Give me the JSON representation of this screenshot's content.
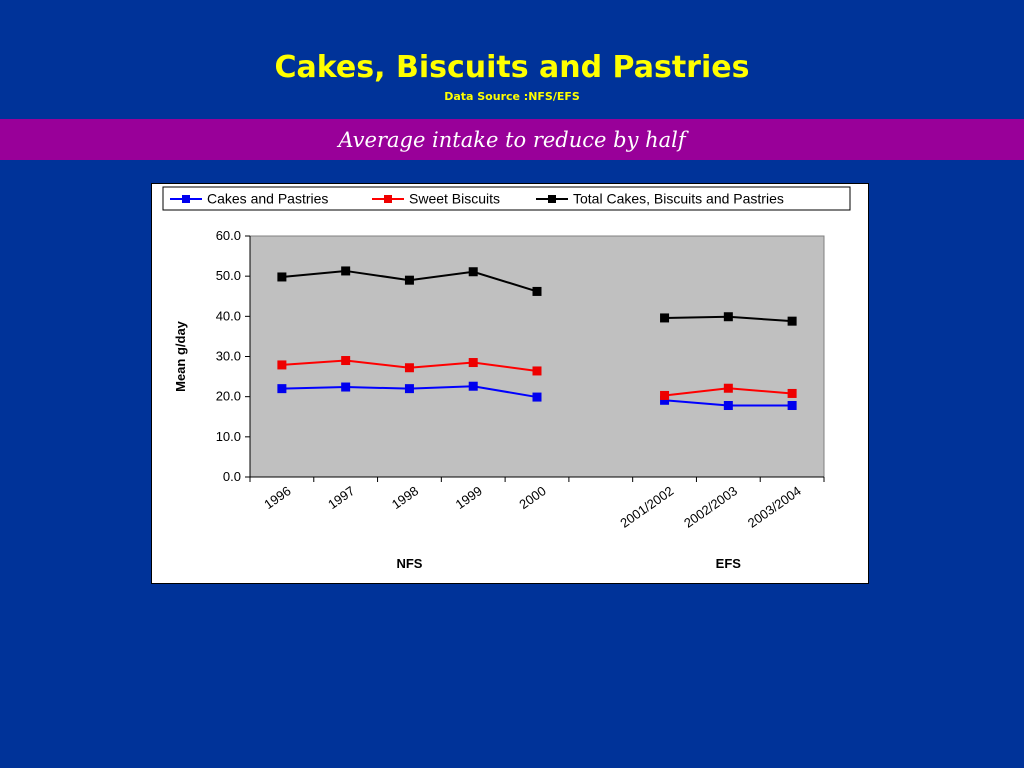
{
  "slide": {
    "title": "Cakes, Biscuits and Pastries",
    "subtitle": "Data Source :NFS/EFS",
    "banner": "Average intake to reduce by half"
  },
  "colors": {
    "background": "#003399",
    "title": "#ffff00",
    "banner": "#990099",
    "plot_area": "#c0c0c0"
  },
  "chart_data": {
    "type": "line",
    "title": "",
    "xlabel": "",
    "ylabel": "Mean g/day",
    "ylim": [
      0,
      60
    ],
    "yticks": [
      "0.0",
      "10.0",
      "20.0",
      "30.0",
      "40.0",
      "50.0",
      "60.0"
    ],
    "categories": [
      "1996",
      "1997",
      "1998",
      "1999",
      "2000",
      "",
      "2001/2002",
      "2002/2003",
      "2003/2004"
    ],
    "groups": [
      {
        "label": "NFS",
        "from": 0,
        "to": 4
      },
      {
        "label": "EFS",
        "from": 6,
        "to": 8
      }
    ],
    "grid": false,
    "legend": "top",
    "series": [
      {
        "name": "Cakes and Pastries",
        "color": "#0000ff",
        "marker_color": "#0000ee",
        "values": [
          22.0,
          22.4,
          22.0,
          22.6,
          19.9,
          null,
          19.1,
          17.8,
          17.8
        ]
      },
      {
        "name": "Sweet Biscuits",
        "color": "#ff0000",
        "marker_color": "#ee0000",
        "values": [
          27.9,
          29.0,
          27.2,
          28.5,
          26.4,
          null,
          20.3,
          22.1,
          20.8
        ]
      },
      {
        "name": "Total Cakes, Biscuits and Pastries",
        "color": "#000000",
        "marker_color": "#000000",
        "values": [
          49.8,
          51.3,
          49.0,
          51.1,
          46.2,
          null,
          39.6,
          39.9,
          38.8
        ]
      }
    ]
  }
}
